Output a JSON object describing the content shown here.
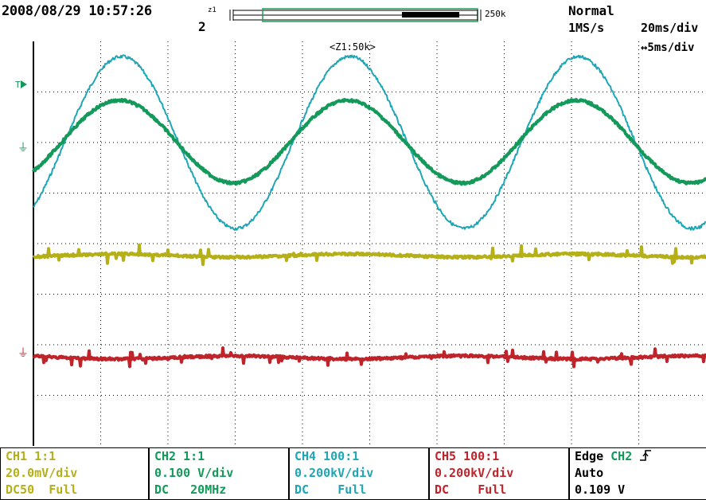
{
  "header": {
    "datetime": "2008/08/29 10:57:26",
    "zoom_small": "z1",
    "zoom_number": "2",
    "record_length": "250k",
    "trigger_mode": "Normal",
    "sample_rate": "1MS/s",
    "timebase": "20ms/div",
    "zoom_timebase": "↔5ms/div",
    "zoom_window_label": "<Z1:50k>"
  },
  "markers": {
    "trigger": "T",
    "ground": "⏚"
  },
  "channels": [
    {
      "name": "CH1 1:1",
      "scale": "20.0mV/div",
      "coupling": "DC50",
      "bandwidth": "Full",
      "color": "#b5b018"
    },
    {
      "name": "CH2 1:1",
      "scale": "0.100 V/div",
      "coupling": "DC",
      "bandwidth": "20MHz",
      "color": "#13995a"
    },
    {
      "name": "CH4 100:1",
      "scale": "0.200kV/div",
      "coupling": "DC",
      "bandwidth": "Full",
      "color": "#1fa6b5"
    },
    {
      "name": "CH5 100:1",
      "scale": "0.200kV/div",
      "coupling": "DC",
      "bandwidth": "Full",
      "color": "#c0242b"
    }
  ],
  "trigger": {
    "type": "Edge",
    "source": "CH2",
    "slope_icon": "rising-edge-icon",
    "mode": "Auto",
    "level": "0.109 V"
  },
  "colors": {
    "background": "#ffffff",
    "grid": "#000000",
    "zoom_window": "#1f9f5a",
    "ch_yellow": "#b5b018",
    "ch_green": "#13995a",
    "ch_cyan": "#1fa6b5",
    "ch_red": "#c0242b"
  }
}
